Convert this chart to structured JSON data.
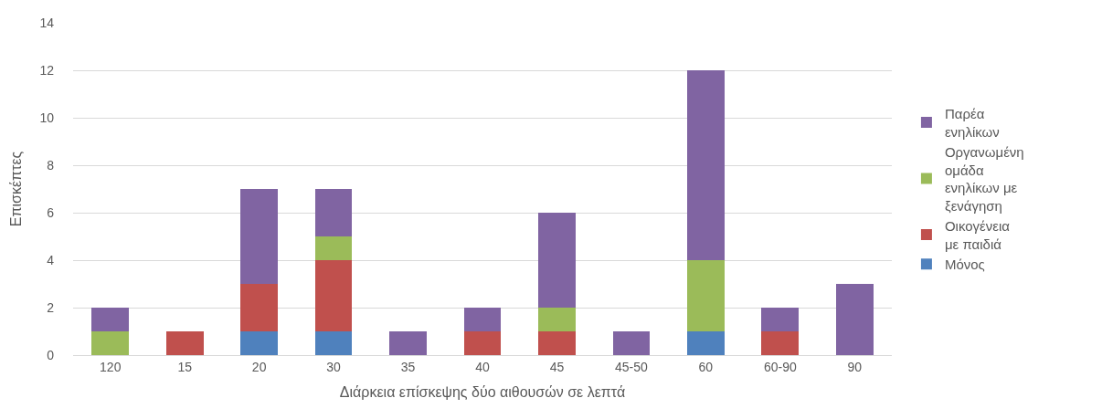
{
  "chart_data": {
    "type": "bar",
    "stacked": true,
    "xlabel": "Διάρκεια επίσκεψης δύο αιθουσών σε λεπτά",
    "ylabel": "Επισκέπτες",
    "categories": [
      "120",
      "15",
      "20",
      "30",
      "35",
      "40",
      "45",
      "45-50",
      "60",
      "60-90",
      "90"
    ],
    "series": [
      {
        "name": "Μόνος",
        "color": "#4f81bd",
        "values": [
          0,
          0,
          1,
          1,
          0,
          0,
          0,
          0,
          1,
          0,
          0
        ]
      },
      {
        "name": "Οικογένεια με παιδιά",
        "color": "#c0504d",
        "values": [
          0,
          1,
          2,
          3,
          0,
          1,
          1,
          0,
          0,
          1,
          0
        ]
      },
      {
        "name": "Οργανωμένη ομάδα ενηλίκων με ξενάγηση",
        "color": "#9bbb59",
        "values": [
          1,
          0,
          0,
          1,
          0,
          0,
          1,
          0,
          3,
          0,
          0
        ]
      },
      {
        "name": "Παρέα ενηλίκων",
        "color": "#8064a2",
        "values": [
          1,
          0,
          4,
          2,
          1,
          1,
          4,
          1,
          8,
          1,
          3
        ]
      }
    ],
    "ylim": [
      0,
      14
    ],
    "yticks": [
      0,
      2,
      4,
      6,
      8,
      10,
      12,
      14
    ],
    "grid": "y",
    "legend": "right"
  }
}
